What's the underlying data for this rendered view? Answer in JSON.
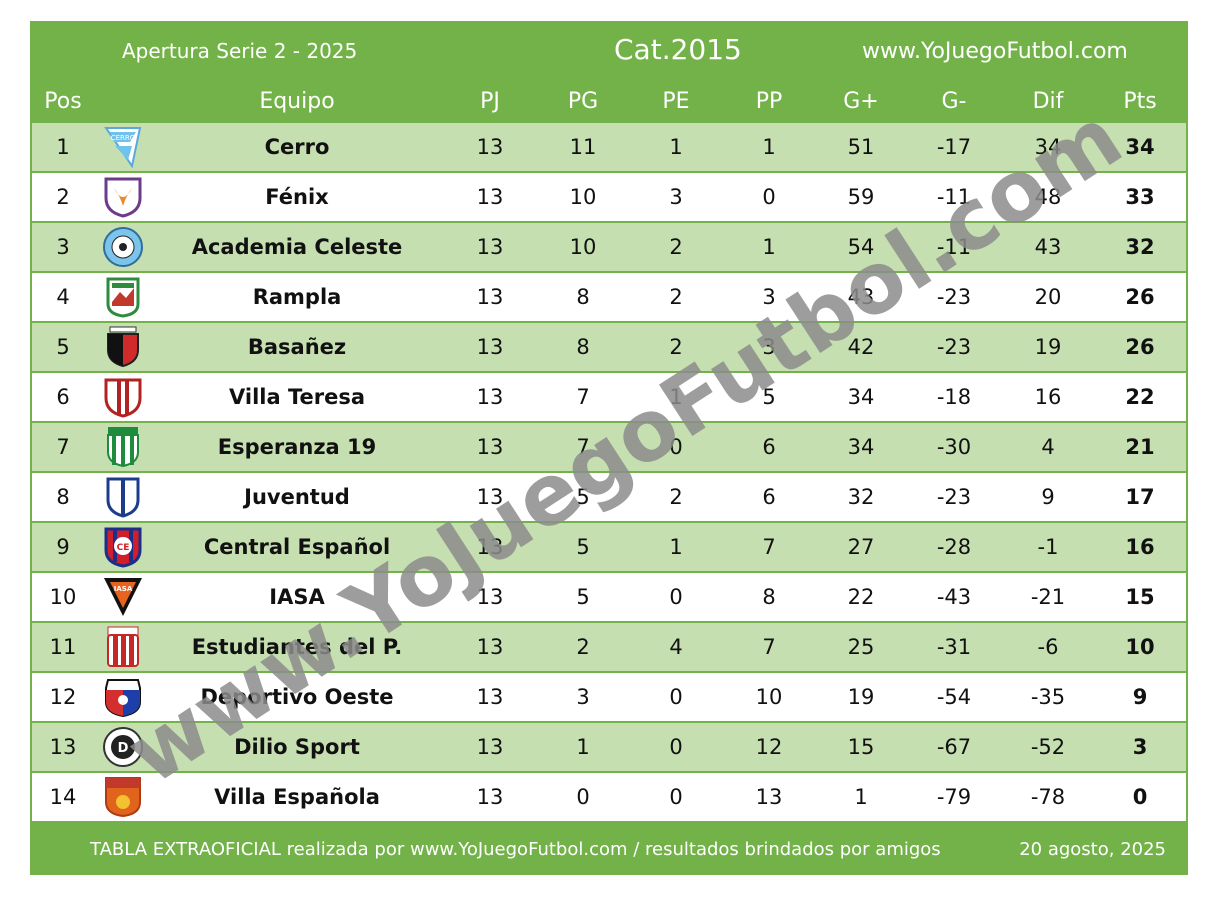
{
  "header": {
    "competition": "Apertura Serie 2 - 2025",
    "category": "Cat.2015",
    "website": "www.YoJuegoFutbol.com"
  },
  "columns": [
    "Pos",
    "Equipo",
    "PJ",
    "PG",
    "PE",
    "PP",
    "G+",
    "G-",
    "Dif",
    "Pts"
  ],
  "rows": [
    {
      "pos": "1",
      "team": "Cerro",
      "pj": "13",
      "pg": "11",
      "pe": "1",
      "pp": "1",
      "gf": "51",
      "gc": "-17",
      "dif": "34",
      "pts": "34",
      "logo": "cerro-crest"
    },
    {
      "pos": "2",
      "team": "Fénix",
      "pj": "13",
      "pg": "10",
      "pe": "3",
      "pp": "0",
      "gf": "59",
      "gc": "-11",
      "dif": "48",
      "pts": "33",
      "logo": "fenix-crest"
    },
    {
      "pos": "3",
      "team": "Academia Celeste",
      "pj": "13",
      "pg": "10",
      "pe": "2",
      "pp": "1",
      "gf": "54",
      "gc": "-11",
      "dif": "43",
      "pts": "32",
      "logo": "academia-celeste-crest"
    },
    {
      "pos": "4",
      "team": "Rampla",
      "pj": "13",
      "pg": "8",
      "pe": "2",
      "pp": "3",
      "gf": "43",
      "gc": "-23",
      "dif": "20",
      "pts": "26",
      "logo": "rampla-crest"
    },
    {
      "pos": "5",
      "team": "Basañez",
      "pj": "13",
      "pg": "8",
      "pe": "2",
      "pp": "3",
      "gf": "42",
      "gc": "-23",
      "dif": "19",
      "pts": "26",
      "logo": "basanez-crest"
    },
    {
      "pos": "6",
      "team": "Villa Teresa",
      "pj": "13",
      "pg": "7",
      "pe": "1",
      "pp": "5",
      "gf": "34",
      "gc": "-18",
      "dif": "16",
      "pts": "22",
      "logo": "villa-teresa-crest"
    },
    {
      "pos": "7",
      "team": "Esperanza 19",
      "pj": "13",
      "pg": "7",
      "pe": "0",
      "pp": "6",
      "gf": "34",
      "gc": "-30",
      "dif": "4",
      "pts": "21",
      "logo": "esperanza-19-crest"
    },
    {
      "pos": "8",
      "team": "Juventud",
      "pj": "13",
      "pg": "5",
      "pe": "2",
      "pp": "6",
      "gf": "32",
      "gc": "-23",
      "dif": "9",
      "pts": "17",
      "logo": "juventud-crest"
    },
    {
      "pos": "9",
      "team": "Central Español",
      "pj": "13",
      "pg": "5",
      "pe": "1",
      "pp": "7",
      "gf": "27",
      "gc": "-28",
      "dif": "-1",
      "pts": "16",
      "logo": "central-espanol-crest"
    },
    {
      "pos": "10",
      "team": "IASA",
      "pj": "13",
      "pg": "5",
      "pe": "0",
      "pp": "8",
      "gf": "22",
      "gc": "-43",
      "dif": "-21",
      "pts": "15",
      "logo": "iasa-crest"
    },
    {
      "pos": "11",
      "team": "Estudiantes del P.",
      "pj": "13",
      "pg": "2",
      "pe": "4",
      "pp": "7",
      "gf": "25",
      "gc": "-31",
      "dif": "-6",
      "pts": "10",
      "logo": "estudiantes-crest"
    },
    {
      "pos": "12",
      "team": "Deportivo Oeste",
      "pj": "13",
      "pg": "3",
      "pe": "0",
      "pp": "10",
      "gf": "19",
      "gc": "-54",
      "dif": "-35",
      "pts": "9",
      "logo": "deportivo-oeste-crest"
    },
    {
      "pos": "13",
      "team": "Dilio Sport",
      "pj": "13",
      "pg": "1",
      "pe": "0",
      "pp": "12",
      "gf": "15",
      "gc": "-67",
      "dif": "-52",
      "pts": "3",
      "logo": "dilio-sport-crest"
    },
    {
      "pos": "14",
      "team": "Villa Española",
      "pj": "13",
      "pg": "0",
      "pe": "0",
      "pp": "13",
      "gf": "1",
      "gc": "-79",
      "dif": "-78",
      "pts": "0",
      "logo": "villa-espanola-crest"
    }
  ],
  "footer": {
    "note": "TABLA EXTRAOFICIAL realizada por www.YoJuegoFutbol.com / resultados brindados por amigos",
    "date": "20 agosto, 2025"
  },
  "watermark": "www.YoJuegoFutbol.com",
  "colors": {
    "green": "#73b248",
    "light_green": "#c6dfb1",
    "watermark": "#8c8c8c"
  }
}
